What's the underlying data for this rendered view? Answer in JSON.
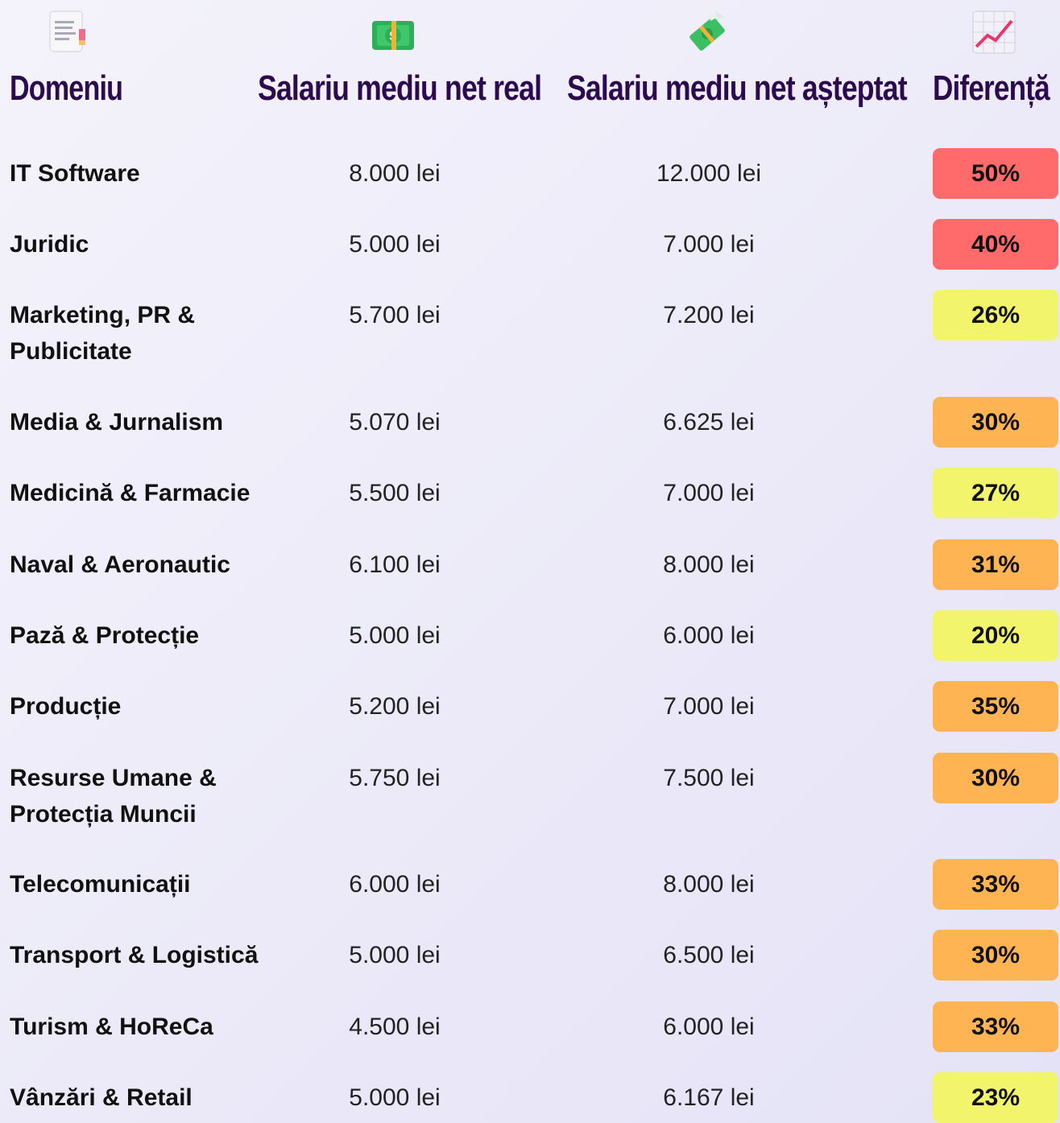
{
  "header": {
    "columns": [
      "Domeniu",
      "Salariu mediu net real",
      "Salariu mediu net așteptat",
      "Diferență"
    ]
  },
  "table": {
    "rows": [
      [
        "IT Software",
        "8.000 lei",
        "12.000 lei",
        "50%"
      ],
      [
        "Juridic",
        "5.000 lei",
        "7.000 lei",
        "40%"
      ],
      [
        "Marketing, PR & Publicitate",
        "5.700 lei",
        "7.200 lei",
        "26%"
      ],
      [
        "Media & Jurnalism",
        "5.070 lei",
        "6.625 lei",
        "30%"
      ],
      [
        "Medicină & Farmacie",
        "5.500 lei",
        "7.000 lei",
        "27%"
      ],
      [
        "Naval & Aeronautic",
        "6.100 lei",
        "8.000 lei",
        "31%"
      ],
      [
        "Pază & Protecție",
        "5.000 lei",
        "6.000 lei",
        "20%"
      ],
      [
        "Producție",
        "5.200 lei",
        "7.000 lei",
        "35%"
      ],
      [
        "Resurse Umane & Protecția Muncii",
        "5.750 lei",
        "7.500 lei",
        "30%"
      ],
      [
        "Telecomunicații",
        "6.000 lei",
        "8.000 lei",
        "33%"
      ],
      [
        "Transport & Logistică",
        "5.000 lei",
        "6.500 lei",
        "30%"
      ],
      [
        "Turism & HoReCa",
        "4.500 lei",
        "6.000 lei",
        "33%"
      ],
      [
        "Vânzări & Retail",
        "5.000 lei",
        "6.167 lei",
        "23%"
      ]
    ],
    "badge_colors": [
      "#ff6b6b",
      "#ff6b6b",
      "#f2f46c",
      "#ffb454",
      "#f2f46c",
      "#ffb454",
      "#f2f46c",
      "#ffb454",
      "#ffb454",
      "#ffb454",
      "#ffb454",
      "#ffb454",
      "#f2f46c"
    ]
  }
}
